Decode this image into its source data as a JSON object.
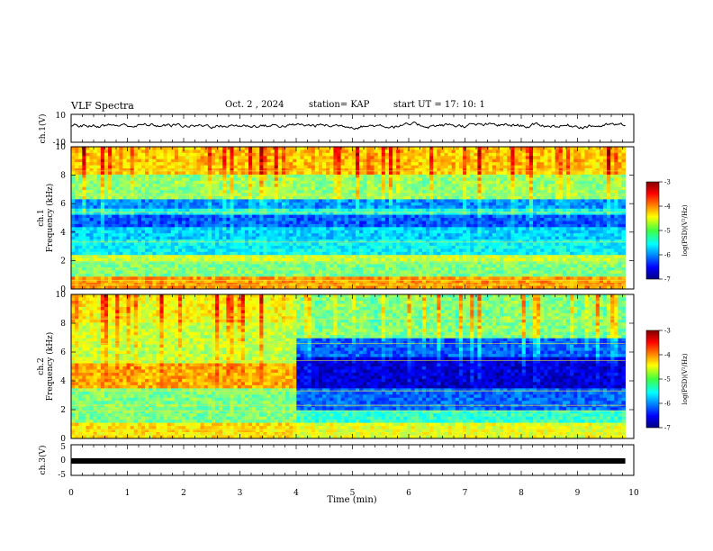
{
  "header": {
    "title": "VLF Spectra",
    "date": "Oct. 2 , 2024",
    "station": "station= KAP",
    "start": "start UT = 17: 10: 1"
  },
  "colorbar": {
    "label": "log(PSD)(V²/Hz)",
    "ticks": [
      "-3",
      "-4",
      "-5",
      "-6",
      "-7"
    ]
  },
  "chart_data": [
    {
      "type": "line",
      "ylabel": "ch.1(V)",
      "ylim": [
        -10,
        10
      ],
      "yticks": [
        "10",
        "-10"
      ],
      "xlim": [
        0,
        10
      ],
      "note": "noisy waveform about +2 V, range about -2 to +7 V, ends at 9.85 min"
    },
    {
      "type": "heatmap",
      "ylabel": "ch.1\nFrequency (kHz)",
      "ylim": [
        0,
        10
      ],
      "yticks": [
        "0",
        "2",
        "4",
        "6",
        "8",
        "10"
      ],
      "xlim": [
        0,
        10
      ],
      "data_end_min": 9.85,
      "zlim": [
        -7,
        -3
      ],
      "colorbar_label": "log(PSD)(V²/Hz)",
      "bands_khz": [
        {
          "from": 0,
          "to": 0.8,
          "level": -4.1
        },
        {
          "from": 0.8,
          "to": 1.9,
          "level": -5.0
        },
        {
          "from": 1.9,
          "to": 2.5,
          "level": -4.7
        },
        {
          "from": 2.5,
          "to": 3.5,
          "level": -5.5
        },
        {
          "from": 3.5,
          "to": 4.4,
          "level": -5.7
        },
        {
          "from": 4.4,
          "to": 5.2,
          "level": -6.2
        },
        {
          "from": 5.2,
          "to": 5.7,
          "level": -5.5
        },
        {
          "from": 5.7,
          "to": 6.4,
          "level": -6.0
        },
        {
          "from": 6.4,
          "to": 8.0,
          "level": -5.0
        },
        {
          "from": 8.0,
          "to": 10.0,
          "level": -4.4
        }
      ]
    },
    {
      "type": "heatmap",
      "ylabel": "ch.2\nFrequency (kHz)",
      "ylim": [
        0,
        10
      ],
      "yticks": [
        "0",
        "2",
        "4",
        "6",
        "8",
        "10"
      ],
      "xlim": [
        0,
        10
      ],
      "data_end_min": 9.85,
      "zlim": [
        -7,
        -3
      ],
      "colorbar_label": "log(PSD)(V²/Hz)",
      "transition_min": 3.95,
      "bands_khz_before": [
        {
          "from": 0,
          "to": 1.0,
          "level": -4.4
        },
        {
          "from": 1.0,
          "to": 2.0,
          "level": -5.0
        },
        {
          "from": 2.0,
          "to": 3.5,
          "level": -5.0
        },
        {
          "from": 3.5,
          "to": 5.3,
          "level": -4.2
        },
        {
          "from": 5.3,
          "to": 8.0,
          "level": -4.8
        },
        {
          "from": 8.0,
          "to": 10.0,
          "level": -4.6
        }
      ],
      "bands_khz_after": [
        {
          "from": 0,
          "to": 1.0,
          "level": -4.6
        },
        {
          "from": 1.0,
          "to": 2.0,
          "level": -5.3
        },
        {
          "from": 2.0,
          "to": 3.5,
          "level": -6.1
        },
        {
          "from": 3.5,
          "to": 5.6,
          "level": -6.7
        },
        {
          "from": 5.6,
          "to": 7.0,
          "level": -6.2
        },
        {
          "from": 7.0,
          "to": 10.0,
          "level": -5.1
        }
      ]
    },
    {
      "type": "line",
      "ylabel": "ch.3(V)",
      "ylim": [
        -5,
        5
      ],
      "yticks": [
        "5",
        "0",
        "-5"
      ],
      "xlim": [
        0,
        10
      ],
      "constant_value": -0.3,
      "note": "flat thick trace"
    }
  ],
  "xaxis": {
    "label": "Time (min)",
    "ticks": [
      "0",
      "1",
      "2",
      "3",
      "4",
      "5",
      "6",
      "7",
      "8",
      "9",
      "10"
    ]
  }
}
